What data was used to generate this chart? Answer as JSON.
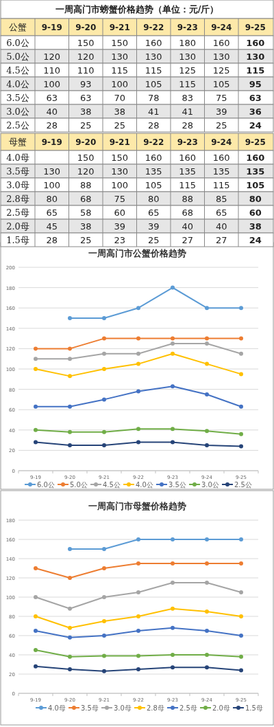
{
  "chart_data": [
    {
      "type": "line",
      "title": "一周高门市公蟹价格趋势",
      "annotations": [
        "一周高门市螃蟹价格趋势（单位：元/斤）",
        "公蟹"
      ],
      "categories": [
        "9-19",
        "9-20",
        "9-21",
        "9-22",
        "9-23",
        "9-24",
        "9-25"
      ],
      "ylim": [
        0,
        200
      ],
      "yticks": [
        0,
        20,
        40,
        60,
        80,
        100,
        120,
        140,
        160,
        180,
        200
      ],
      "grid": "y",
      "legend": "bottom",
      "marker": "circle",
      "data_labels": true,
      "series": [
        {
          "name": "6.0公",
          "color": "#5b9bd5",
          "values": [
            null,
            150,
            150,
            160,
            180,
            160,
            160
          ]
        },
        {
          "name": "5.0公",
          "color": "#ed7d31",
          "values": [
            120,
            120,
            130,
            130,
            130,
            130,
            130
          ]
        },
        {
          "name": "4.5公",
          "color": "#a5a5a5",
          "values": [
            110,
            110,
            115,
            115,
            125,
            125,
            115
          ]
        },
        {
          "name": "4.0公",
          "color": "#ffc000",
          "values": [
            100,
            93,
            100,
            105,
            115,
            105,
            95
          ]
        },
        {
          "name": "3.5公",
          "color": "#4472c4",
          "values": [
            63,
            63,
            70,
            78,
            83,
            75,
            63
          ]
        },
        {
          "name": "3.0公",
          "color": "#70ad47",
          "values": [
            40,
            38,
            38,
            41,
            41,
            39,
            36
          ]
        },
        {
          "name": "2.5公",
          "color": "#264478",
          "values": [
            28,
            25,
            25,
            28,
            28,
            25,
            24
          ]
        }
      ]
    },
    {
      "type": "line",
      "title": "一周高门市母蟹价格趋势",
      "annotations": [
        "母蟹"
      ],
      "categories": [
        "9-19",
        "9-20",
        "9-21",
        "9-22",
        "9-23",
        "9-24",
        "9-25"
      ],
      "ylim": [
        0,
        180
      ],
      "yticks": [
        0,
        20,
        40,
        60,
        80,
        100,
        120,
        140,
        160,
        180
      ],
      "grid": "y",
      "legend": "bottom",
      "marker": "circle",
      "data_labels": true,
      "series": [
        {
          "name": "4.0母",
          "color": "#5b9bd5",
          "values": [
            null,
            150,
            150,
            160,
            160,
            160,
            160
          ]
        },
        {
          "name": "3.5母",
          "color": "#ed7d31",
          "values": [
            130,
            120,
            130,
            135,
            135,
            135,
            135
          ]
        },
        {
          "name": "3.0母",
          "color": "#a5a5a5",
          "values": [
            100,
            88,
            100,
            105,
            115,
            115,
            105
          ]
        },
        {
          "name": "2.8母",
          "color": "#ffc000",
          "values": [
            80,
            68,
            75,
            80,
            88,
            85,
            80
          ]
        },
        {
          "name": "2.5母",
          "color": "#4472c4",
          "values": [
            65,
            58,
            60,
            65,
            68,
            65,
            60
          ]
        },
        {
          "name": "2.0母",
          "color": "#70ad47",
          "values": [
            45,
            38,
            39,
            39,
            40,
            40,
            38
          ]
        },
        {
          "name": "1.5母",
          "color": "#264478",
          "values": [
            28,
            25,
            23,
            25,
            27,
            27,
            24
          ]
        }
      ]
    }
  ]
}
